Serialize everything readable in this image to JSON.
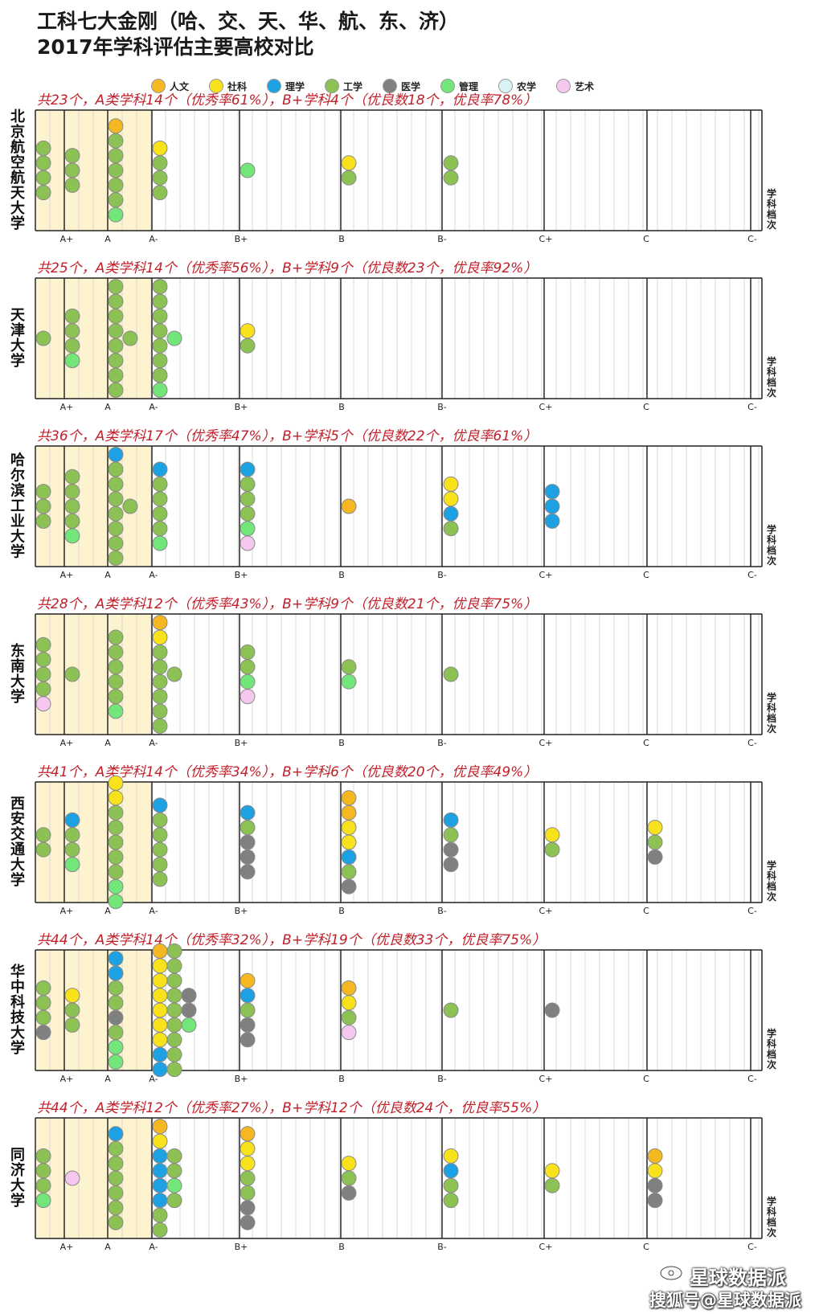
{
  "title_line1": "工科七大金刚（哈、交、天、华、航、东、济）",
  "title_line2": "2017年学科评估主要高校对比",
  "legend": [
    {
      "label": "人文",
      "color": "#f5b820"
    },
    {
      "label": "社科",
      "color": "#f8e21c"
    },
    {
      "label": "理学",
      "color": "#1ea1e3"
    },
    {
      "label": "工学",
      "color": "#8cc153"
    },
    {
      "label": "医学",
      "color": "#808080"
    },
    {
      "label": "管理",
      "color": "#72e678"
    },
    {
      "label": "农学",
      "color": "#d8f4f6"
    },
    {
      "label": "艺术",
      "color": "#f7c8ef"
    }
  ],
  "tick_labels": [
    "A+",
    "A",
    "A-",
    "B+",
    "B",
    "B-",
    "C+",
    "C",
    "C-"
  ],
  "side_label": [
    "学",
    "科",
    "档",
    "次"
  ],
  "watermark": {
    "line1": "星球数据派",
    "line2": "搜狐号@星球数据派"
  },
  "chart_data": {
    "type": "scatter",
    "title": "工科七大金刚（哈、交、天、华、航、东、济） 2017年学科评估主要高校对比",
    "categories": [
      "A+",
      "A",
      "A-",
      "B+",
      "B",
      "B-",
      "C+",
      "C",
      "C-"
    ],
    "series_legend": [
      "人文",
      "社科",
      "理学",
      "工学",
      "医学",
      "管理",
      "农学",
      "艺术"
    ],
    "panels": [
      {
        "university": "北京航空航天大学",
        "summary": "共23个，A类学科14个（优秀率61%），B+学科4个（优良数18个，优良率78%）",
        "columns": [
          {
            "grade": "A+",
            "stacks": [
              [
                "工学",
                "工学",
                "工学",
                "工学"
              ]
            ]
          },
          {
            "grade": "A",
            "stacks": [
              [
                "工学",
                "工学",
                "工学"
              ]
            ]
          },
          {
            "grade": "A",
            "stacks": [
              [
                "人文",
                "工学",
                "工学",
                "工学",
                "工学",
                "工学",
                "管理"
              ]
            ]
          },
          {
            "grade": "A-",
            "stacks": [
              [
                "社科",
                "工学",
                "工学",
                "工学"
              ]
            ]
          },
          {
            "grade": "B+",
            "stacks": [
              [
                "管理"
              ]
            ]
          },
          {
            "grade": "B",
            "stacks": [
              [
                "社科",
                "工学"
              ]
            ]
          },
          {
            "grade": "B-",
            "stacks": [
              [
                "工学",
                "工学"
              ]
            ]
          }
        ]
      },
      {
        "university": "天津大学",
        "summary": "共25个，A类学科14个（优秀率56%），B+学科9个（优良数23个，优良率92%）",
        "columns": [
          {
            "grade": "A+",
            "stacks": [
              [
                "工学"
              ]
            ]
          },
          {
            "grade": "A",
            "stacks": [
              [
                "工学",
                "工学",
                "工学",
                "管理"
              ]
            ]
          },
          {
            "grade": "A",
            "stacks": [
              [
                "工学",
                "工学",
                "工学",
                "工学",
                "工学",
                "工学",
                "工学",
                "工学"
              ],
              [
                "工学"
              ]
            ]
          },
          {
            "grade": "A-",
            "stacks": [
              [
                "工学",
                "工学",
                "工学",
                "工学",
                "工学",
                "工学",
                "工学",
                "管理"
              ],
              [
                "管理"
              ]
            ]
          },
          {
            "grade": "B+",
            "stacks": [
              [
                "社科",
                "工学"
              ]
            ]
          }
        ]
      },
      {
        "university": "哈尔滨工业大学",
        "summary": "共36个，A类学科17个（优秀率47%），B+学科5个（优良数22个，优良率61%）",
        "columns": [
          {
            "grade": "A+",
            "stacks": [
              [
                "工学",
                "工学",
                "工学"
              ]
            ]
          },
          {
            "grade": "A",
            "stacks": [
              [
                "工学",
                "工学",
                "工学",
                "工学",
                "管理"
              ]
            ]
          },
          {
            "grade": "A",
            "stacks": [
              [
                "理学",
                "工学",
                "工学",
                "工学",
                "工学",
                "工学",
                "工学",
                "工学"
              ],
              [
                "工学"
              ]
            ]
          },
          {
            "grade": "A-",
            "stacks": [
              [
                "理学",
                "工学",
                "工学",
                "工学",
                "工学",
                "管理"
              ]
            ]
          },
          {
            "grade": "B+",
            "stacks": [
              [
                "理学",
                "工学",
                "工学",
                "工学",
                "管理",
                "艺术"
              ]
            ]
          },
          {
            "grade": "B",
            "stacks": [
              [
                "人文"
              ]
            ]
          },
          {
            "grade": "B-",
            "stacks": [
              [
                "社科",
                "社科",
                "理学",
                "工学"
              ]
            ]
          },
          {
            "grade": "C+",
            "stacks": [
              [
                "理学",
                "理学",
                "理学"
              ]
            ]
          }
        ]
      },
      {
        "university": "东南大学",
        "summary": "共28个，A类学科12个（优秀率43%），B+学科9个（优良数21个，优良率75%）",
        "columns": [
          {
            "grade": "A+",
            "stacks": [
              [
                "工学",
                "工学",
                "工学",
                "工学",
                "艺术"
              ]
            ]
          },
          {
            "grade": "A",
            "stacks": [
              [
                "工学"
              ]
            ]
          },
          {
            "grade": "A",
            "stacks": [
              [
                "工学",
                "工学",
                "工学",
                "工学",
                "工学",
                "管理"
              ]
            ]
          },
          {
            "grade": "A-",
            "stacks": [
              [
                "人文",
                "社科",
                "工学",
                "工学",
                "工学",
                "工学",
                "工学",
                "工学"
              ],
              [
                "工学"
              ]
            ]
          },
          {
            "grade": "B+",
            "stacks": [
              [
                "工学",
                "工学",
                "管理",
                "艺术"
              ]
            ]
          },
          {
            "grade": "B",
            "stacks": [
              [
                "工学",
                "管理"
              ]
            ]
          },
          {
            "grade": "B-",
            "stacks": [
              [
                "工学"
              ]
            ]
          }
        ]
      },
      {
        "university": "西安交通大学",
        "summary": "共41个，A类学科14个（优秀率34%），B+学科6个（优良数20个，优良率49%）",
        "columns": [
          {
            "grade": "A+",
            "stacks": [
              [
                "工学",
                "工学"
              ]
            ]
          },
          {
            "grade": "A",
            "stacks": [
              [
                "理学",
                "工学",
                "工学",
                "管理"
              ]
            ]
          },
          {
            "grade": "A",
            "stacks": [
              [
                "社科",
                "社科",
                "工学",
                "工学",
                "工学",
                "工学",
                "工学",
                "管理",
                "管理"
              ]
            ]
          },
          {
            "grade": "A-",
            "stacks": [
              [
                "理学",
                "工学",
                "工学",
                "工学",
                "工学",
                "工学"
              ]
            ]
          },
          {
            "grade": "B+",
            "stacks": [
              [
                "理学",
                "工学",
                "医学",
                "医学",
                "医学"
              ]
            ]
          },
          {
            "grade": "B",
            "stacks": [
              [
                "人文",
                "人文",
                "社科",
                "社科",
                "理学",
                "工学",
                "医学"
              ]
            ]
          },
          {
            "grade": "B-",
            "stacks": [
              [
                "理学",
                "工学",
                "医学",
                "医学"
              ]
            ]
          },
          {
            "grade": "C+",
            "stacks": [
              [
                "社科",
                "工学"
              ]
            ]
          },
          {
            "grade": "C",
            "stacks": [
              [
                "社科",
                "工学",
                "医学"
              ]
            ]
          }
        ]
      },
      {
        "university": "华中科技大学",
        "summary": "共44个，A类学科14个（优秀率32%），B+学科19个（优良数33个，优良率75%）",
        "columns": [
          {
            "grade": "A+",
            "stacks": [
              [
                "工学",
                "工学",
                "工学",
                "医学"
              ]
            ]
          },
          {
            "grade": "A",
            "stacks": [
              [
                "社科",
                "工学",
                "工学"
              ]
            ]
          },
          {
            "grade": "A",
            "stacks": [
              [
                "理学",
                "理学",
                "工学",
                "工学",
                "医学",
                "工学",
                "管理",
                "管理"
              ]
            ]
          },
          {
            "grade": "A-",
            "stacks": [
              [
                "人文",
                "社科",
                "社科",
                "社科",
                "社科",
                "社科",
                "社科",
                "理学",
                "理学"
              ],
              [
                "工学",
                "工学",
                "工学",
                "工学",
                "工学",
                "工学",
                "工学",
                "工学",
                "工学"
              ],
              [
                "医学",
                "医学",
                "管理"
              ]
            ]
          },
          {
            "grade": "B+",
            "stacks": [
              [
                "人文",
                "理学",
                "工学",
                "医学",
                "医学"
              ]
            ]
          },
          {
            "grade": "B",
            "stacks": [
              [
                "人文",
                "社科",
                "工学",
                "艺术"
              ]
            ]
          },
          {
            "grade": "B-",
            "stacks": [
              [
                "工学"
              ]
            ]
          },
          {
            "grade": "C+",
            "stacks": [
              [
                "医学"
              ]
            ]
          }
        ]
      },
      {
        "university": "同济大学",
        "summary": "共44个，A类学科12个（优秀率27%），B+学科12个（优良数24个，优良率55%）",
        "columns": [
          {
            "grade": "A+",
            "stacks": [
              [
                "工学",
                "工学",
                "工学",
                "管理"
              ]
            ]
          },
          {
            "grade": "A",
            "stacks": [
              [
                "艺术"
              ]
            ]
          },
          {
            "grade": "A",
            "stacks": [
              [
                "理学",
                "工学",
                "工学",
                "工学",
                "工学",
                "工学",
                "工学"
              ]
            ]
          },
          {
            "grade": "A-",
            "stacks": [
              [
                "人文",
                "社科",
                "理学",
                "理学",
                "理学",
                "理学",
                "工学",
                "工学"
              ],
              [
                "工学",
                "工学",
                "管理",
                "工学"
              ]
            ]
          },
          {
            "grade": "B+",
            "stacks": [
              [
                "人文",
                "社科",
                "社科",
                "工学",
                "工学",
                "医学",
                "医学"
              ]
            ]
          },
          {
            "grade": "B",
            "stacks": [
              [
                "社科",
                "工学",
                "医学"
              ]
            ]
          },
          {
            "grade": "B-",
            "stacks": [
              [
                "社科",
                "理学",
                "工学",
                "工学"
              ]
            ]
          },
          {
            "grade": "C+",
            "stacks": [
              [
                "社科",
                "工学"
              ]
            ]
          },
          {
            "grade": "C",
            "stacks": [
              [
                "人文",
                "社科",
                "医学",
                "医学"
              ]
            ]
          }
        ]
      }
    ]
  }
}
